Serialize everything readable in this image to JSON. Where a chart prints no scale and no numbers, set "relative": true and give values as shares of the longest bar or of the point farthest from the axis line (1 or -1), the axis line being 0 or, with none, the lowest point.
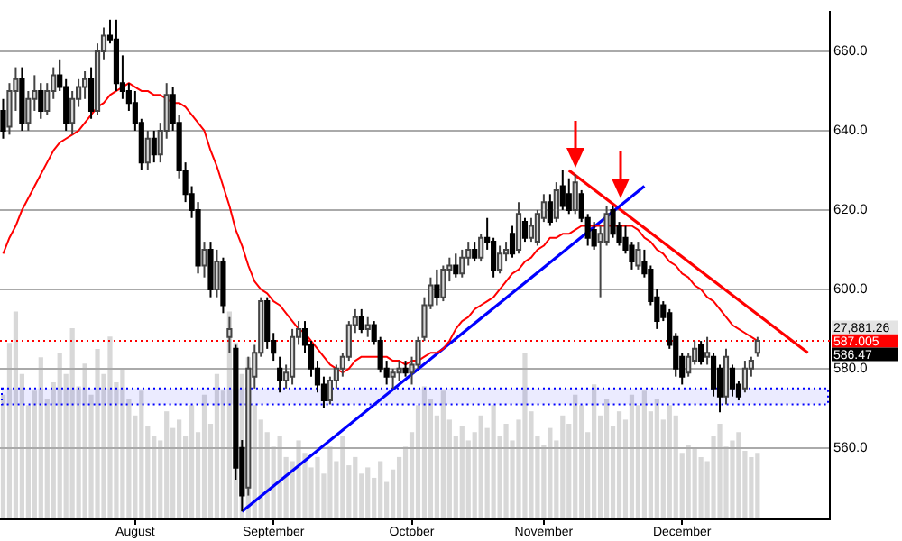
{
  "chart_data": [
    {
      "type": "candlestick",
      "marker": "none",
      "grid": "y",
      "categories": [
        null,
        null,
        null,
        null,
        null,
        null,
        null,
        null,
        null,
        null,
        null,
        null,
        null,
        null,
        null,
        null,
        null,
        null,
        null,
        null,
        null,
        "August",
        null,
        null,
        null,
        null,
        null,
        null,
        null,
        null,
        null,
        null,
        null,
        null,
        null,
        null,
        null,
        null,
        null,
        null,
        null,
        null,
        null,
        "September",
        null,
        null,
        null,
        null,
        null,
        null,
        null,
        null,
        null,
        null,
        null,
        null,
        null,
        null,
        null,
        null,
        null,
        null,
        null,
        null,
        null,
        "October",
        null,
        null,
        null,
        null,
        null,
        null,
        null,
        null,
        null,
        null,
        null,
        null,
        null,
        null,
        null,
        null,
        null,
        null,
        null,
        null,
        "November",
        null,
        null,
        null,
        null,
        null,
        null,
        null,
        null,
        null,
        null,
        null,
        null,
        null,
        null,
        null,
        null,
        null,
        null,
        null,
        null,
        null,
        "December",
        null,
        null,
        null,
        null,
        null,
        null,
        null,
        null,
        null,
        null,
        null,
        null,
        null,
        null,
        null,
        null,
        null,
        null,
        null,
        null,
        null,
        null,
        null
      ],
      "ohlc": [
        [
          645,
          648,
          638,
          640
        ],
        [
          641,
          652,
          639,
          650
        ],
        [
          650,
          656,
          645,
          653
        ],
        [
          653,
          656,
          640,
          642
        ],
        [
          642,
          650,
          640,
          648
        ],
        [
          648,
          654,
          645,
          650
        ],
        [
          650,
          652,
          643,
          645
        ],
        [
          645,
          652,
          644,
          650
        ],
        [
          650,
          656,
          648,
          654
        ],
        [
          654,
          658,
          650,
          651
        ],
        [
          651,
          653,
          640,
          642
        ],
        [
          642,
          650,
          639,
          648
        ],
        [
          648,
          653,
          646,
          651
        ],
        [
          651,
          655,
          648,
          653
        ],
        [
          653,
          656,
          643,
          645
        ],
        [
          645,
          662,
          644,
          660
        ],
        [
          660,
          666,
          658,
          664
        ],
        [
          664,
          668,
          662,
          663
        ],
        [
          663,
          668,
          650,
          652
        ],
        [
          652,
          659,
          648,
          650
        ],
        [
          650,
          652,
          645,
          647
        ],
        [
          647,
          650,
          640,
          642
        ],
        [
          642,
          643,
          630,
          632
        ],
        [
          632,
          640,
          630,
          638
        ],
        [
          638,
          640,
          632,
          634
        ],
        [
          634,
          642,
          632,
          640
        ],
        [
          640,
          652,
          638,
          649
        ],
        [
          649,
          651,
          640,
          642
        ],
        [
          642,
          644,
          628,
          630
        ],
        [
          630,
          632,
          622,
          624
        ],
        [
          624,
          626,
          618,
          620
        ],
        [
          620,
          622,
          604,
          606
        ],
        [
          606,
          612,
          603,
          610
        ],
        [
          610,
          612,
          598,
          600
        ],
        [
          600,
          610,
          598,
          607
        ],
        [
          607,
          608,
          594,
          596
        ],
        [
          588,
          593,
          584,
          590
        ],
        [
          585,
          586,
          552,
          555
        ],
        [
          560,
          562,
          544,
          548
        ],
        [
          550,
          583,
          548,
          580
        ],
        [
          578,
          586,
          575,
          584
        ],
        [
          584,
          598,
          583,
          597
        ],
        [
          597,
          598,
          585,
          587
        ],
        [
          587,
          589,
          582,
          584
        ],
        [
          580,
          583,
          574,
          577
        ],
        [
          577,
          581,
          575,
          579
        ],
        [
          578,
          590,
          576,
          588
        ],
        [
          588,
          592,
          586,
          590
        ],
        [
          590,
          592,
          584,
          586
        ],
        [
          586,
          587,
          578,
          580
        ],
        [
          580,
          582,
          574,
          576
        ],
        [
          576,
          578,
          570,
          572
        ],
        [
          572,
          578,
          571,
          577
        ],
        [
          577,
          581,
          575,
          580
        ],
        [
          580,
          584,
          578,
          583
        ],
        [
          583,
          592,
          582,
          591
        ],
        [
          591,
          595,
          589,
          593
        ],
        [
          593,
          595,
          589,
          590
        ],
        [
          590,
          593,
          588,
          591
        ],
        [
          591,
          592,
          586,
          587
        ],
        [
          587,
          588,
          579,
          580
        ],
        [
          580,
          582,
          576,
          578
        ],
        [
          578,
          580,
          575,
          579
        ],
        [
          579,
          582,
          577,
          580
        ],
        [
          580,
          582,
          578,
          579
        ],
        [
          579,
          583,
          576,
          581
        ],
        [
          581,
          588,
          580,
          587
        ],
        [
          588,
          598,
          587,
          596
        ],
        [
          596,
          603,
          595,
          601
        ],
        [
          601,
          605,
          596,
          598
        ],
        [
          598,
          606,
          597,
          605
        ],
        [
          605,
          608,
          602,
          606
        ],
        [
          606,
          609,
          603,
          604
        ],
        [
          604,
          610,
          603,
          608
        ],
        [
          608,
          612,
          606,
          610
        ],
        [
          610,
          612,
          607,
          608
        ],
        [
          608,
          614,
          607,
          613
        ],
        [
          613,
          618,
          610,
          612
        ],
        [
          612,
          613,
          603,
          605
        ],
        [
          605,
          611,
          604,
          609
        ],
        [
          609,
          612,
          607,
          610
        ],
        [
          614,
          616,
          608,
          609
        ],
        [
          610,
          622,
          609,
          619
        ],
        [
          617,
          618,
          612,
          613
        ],
        [
          613,
          618,
          612,
          616
        ],
        [
          612,
          620,
          611,
          619
        ],
        [
          618,
          624,
          617,
          622
        ],
        [
          622,
          624,
          616,
          617
        ],
        [
          618,
          627,
          617,
          625
        ],
        [
          626,
          630,
          620,
          621
        ],
        [
          624,
          628,
          619,
          620
        ],
        [
          620,
          629,
          619,
          627
        ],
        [
          624,
          625,
          617,
          618
        ],
        [
          618,
          619,
          611,
          613
        ],
        [
          615,
          617,
          610,
          611
        ],
        [
          612,
          616,
          598,
          614
        ],
        [
          612,
          621,
          611,
          619
        ],
        [
          620,
          621,
          613,
          614
        ],
        [
          616,
          617,
          611,
          612
        ],
        [
          613,
          616,
          609,
          610
        ],
        [
          611,
          612,
          605,
          607
        ],
        [
          606,
          612,
          605,
          610
        ],
        [
          607,
          610,
          603,
          604
        ],
        [
          605,
          606,
          596,
          597
        ],
        [
          598,
          600,
          590,
          592
        ],
        [
          596,
          597,
          592,
          593
        ],
        [
          594,
          595,
          585,
          586
        ],
        [
          588,
          589,
          578,
          580
        ],
        [
          583,
          584,
          576,
          578
        ],
        [
          579,
          584,
          578,
          583
        ],
        [
          582,
          587,
          581,
          585
        ],
        [
          586,
          587,
          581,
          582
        ],
        [
          583,
          588,
          581,
          584
        ],
        [
          583,
          584,
          573,
          575
        ],
        [
          580,
          581,
          569,
          573
        ],
        [
          573,
          585,
          571,
          583
        ],
        [
          580,
          581,
          573,
          575
        ],
        [
          576,
          577,
          572,
          573
        ],
        [
          575,
          582,
          574,
          580
        ],
        [
          580,
          583,
          578,
          582
        ],
        [
          584,
          588,
          583,
          587
        ],
        null,
        null,
        null,
        null,
        null,
        null,
        null,
        null,
        null,
        null,
        null
      ],
      "series": [
        {
          "type": "line",
          "color": "#ff0000",
          "values": [
            609,
            613,
            616,
            620,
            623,
            626,
            629,
            632,
            635,
            637,
            638,
            639,
            640,
            642,
            644,
            646,
            647,
            649,
            650,
            651,
            652,
            651,
            650,
            650,
            649,
            649,
            648,
            647,
            647,
            646,
            644,
            642,
            640,
            635,
            631,
            626,
            621,
            615,
            611,
            606,
            602,
            600,
            599,
            597,
            596,
            594,
            592,
            590,
            589,
            587,
            585,
            583,
            581,
            580,
            579,
            580,
            582,
            583,
            583,
            583,
            583,
            583,
            582,
            582,
            581,
            582,
            582,
            583,
            584,
            584,
            585,
            587,
            590,
            592,
            593,
            595,
            596,
            597,
            598,
            600,
            602,
            604,
            605,
            607,
            608,
            610,
            611,
            613,
            613,
            614,
            614,
            615,
            616,
            616,
            616,
            616,
            616,
            616,
            616,
            616,
            616,
            615,
            613,
            612,
            610,
            609,
            607,
            606,
            604,
            603,
            601,
            600,
            598,
            597,
            595,
            593,
            591,
            590,
            589,
            588,
            587,
            null,
            null,
            null,
            null,
            null,
            null,
            null,
            null,
            null,
            null,
            null
          ]
        },
        {
          "type": "line",
          "color": "#0000ff",
          "values": [
            null,
            null,
            null,
            null,
            null,
            null,
            null,
            null,
            null,
            null,
            null,
            null,
            null,
            null,
            null,
            null,
            null,
            null,
            null,
            null,
            null,
            null,
            null,
            null,
            null,
            null,
            null,
            null,
            null,
            null,
            null,
            null,
            null,
            null,
            null,
            null,
            null,
            null,
            544,
            null,
            null,
            null,
            null,
            null,
            null,
            null,
            null,
            null,
            null,
            null,
            null,
            null,
            null,
            null,
            null,
            null,
            null,
            null,
            null,
            null,
            null,
            null,
            null,
            null,
            null,
            null,
            null,
            null,
            null,
            null,
            null,
            null,
            null,
            null,
            null,
            null,
            null,
            null,
            null,
            null,
            null,
            null,
            null,
            null,
            null,
            null,
            null,
            null,
            null,
            null,
            null,
            null,
            null,
            null,
            null,
            null,
            null,
            null,
            null,
            null,
            null,
            null,
            626,
            null,
            null,
            null,
            null,
            null,
            null,
            null,
            null,
            null,
            null,
            null,
            null,
            null,
            null,
            null,
            null,
            null,
            null,
            null,
            null,
            null,
            null,
            null,
            null,
            null,
            null,
            null,
            null,
            null
          ]
        },
        {
          "type": "line",
          "color": "#ff0000",
          "values": [
            null,
            null,
            null,
            null,
            null,
            null,
            null,
            null,
            null,
            null,
            null,
            null,
            null,
            null,
            null,
            null,
            null,
            null,
            null,
            null,
            null,
            null,
            null,
            null,
            null,
            null,
            null,
            null,
            null,
            null,
            null,
            null,
            null,
            null,
            null,
            null,
            null,
            null,
            null,
            null,
            null,
            null,
            null,
            null,
            null,
            null,
            null,
            null,
            null,
            null,
            null,
            null,
            null,
            null,
            null,
            null,
            null,
            null,
            null,
            null,
            null,
            null,
            null,
            null,
            null,
            null,
            null,
            null,
            null,
            null,
            null,
            null,
            null,
            null,
            null,
            null,
            null,
            null,
            null,
            null,
            null,
            null,
            null,
            null,
            null,
            null,
            null,
            null,
            null,
            null,
            630,
            null,
            null,
            null,
            null,
            null,
            null,
            null,
            null,
            null,
            null,
            null,
            null,
            null,
            null,
            null,
            null,
            null,
            null,
            null,
            null,
            null,
            null,
            null,
            null,
            null,
            null,
            null,
            null,
            null,
            null,
            null,
            null,
            null,
            null,
            null,
            null,
            null,
            584,
            null,
            null,
            null
          ]
        }
      ],
      "ylim": [
        542,
        670
      ],
      "yticks": [
        {
          "value": 560,
          "label": "560.0"
        },
        {
          "value": 580,
          "label": "580.0"
        },
        {
          "value": 600,
          "label": "600.0"
        },
        {
          "value": 620,
          "label": "620.0"
        },
        {
          "value": 640,
          "label": "640.0"
        },
        {
          "value": 660,
          "label": "660.0"
        }
      ],
      "ref_lines": [
        {
          "axis": "y",
          "value": 587.005,
          "label": "587.005",
          "color": "#ff0000",
          "line_style": "dotted"
        }
      ],
      "bands": [
        {
          "axis": "y",
          "from": 571,
          "to": 575,
          "color": "#0000ff"
        }
      ],
      "annotations": [
        "27,881.26",
        "586.47"
      ]
    },
    {
      "type": "bar",
      "relative": true,
      "color": "#d8d8d8",
      "categories": [
        null,
        null,
        null,
        null,
        null,
        null,
        null,
        null,
        null,
        null,
        null,
        null,
        null,
        null,
        null,
        null,
        null,
        null,
        null,
        null,
        null,
        null,
        null,
        null,
        null,
        null,
        null,
        null,
        null,
        null,
        null,
        null,
        null,
        null,
        null,
        null,
        null,
        null,
        null,
        null,
        null,
        null,
        null,
        null,
        null,
        null,
        null,
        null,
        null,
        null,
        null,
        null,
        null,
        null,
        null,
        null,
        null,
        null,
        null,
        null,
        null,
        null,
        null,
        null,
        null,
        null,
        null,
        null,
        null,
        null,
        null,
        null,
        null,
        null,
        null,
        null,
        null,
        null,
        null,
        null,
        null,
        null,
        null,
        null,
        null,
        null,
        null,
        null,
        null,
        null,
        null,
        null,
        null,
        null,
        null,
        null,
        null,
        null,
        null,
        null,
        null,
        null,
        null,
        null,
        null,
        null,
        null,
        null,
        null,
        null,
        null,
        null,
        null,
        null,
        null,
        null,
        null,
        null,
        null,
        null,
        null
      ],
      "values": [
        0.6,
        0.85,
        1.0,
        0.7,
        0.55,
        0.62,
        0.78,
        0.58,
        0.66,
        0.8,
        0.7,
        0.92,
        0.64,
        0.75,
        0.6,
        0.82,
        0.7,
        0.88,
        0.66,
        0.72,
        0.58,
        0.5,
        0.62,
        0.45,
        0.4,
        0.38,
        0.52,
        0.44,
        0.48,
        0.4,
        0.55,
        0.42,
        0.6,
        0.46,
        0.7,
        0.62,
        1.0,
        0.85,
        0.7,
        0.78,
        0.55,
        0.48,
        0.42,
        0.35,
        0.4,
        0.3,
        0.28,
        0.38,
        0.32,
        0.25,
        0.3,
        0.22,
        0.35,
        0.28,
        0.4,
        0.26,
        0.3,
        0.22,
        0.25,
        0.2,
        0.28,
        0.18,
        0.24,
        0.3,
        0.35,
        0.42,
        0.55,
        0.64,
        0.58,
        0.5,
        0.62,
        0.48,
        0.4,
        0.45,
        0.38,
        0.42,
        0.5,
        0.44,
        0.55,
        0.4,
        0.46,
        0.38,
        0.48,
        0.8,
        0.52,
        0.4,
        0.36,
        0.44,
        0.38,
        0.5,
        0.46,
        0.6,
        0.55,
        0.42,
        0.65,
        0.5,
        0.58,
        0.45,
        0.52,
        0.48,
        0.6,
        0.55,
        0.62,
        0.52,
        0.58,
        0.48,
        0.55,
        0.5,
        0.32,
        0.36,
        0.34,
        0.3,
        0.28,
        0.4,
        0.46,
        0.35,
        0.38,
        0.42,
        0.33,
        0.3,
        0.32
      ]
    }
  ]
}
